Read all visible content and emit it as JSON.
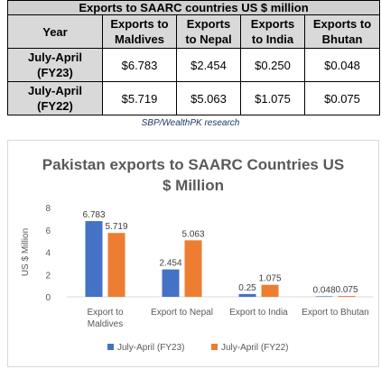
{
  "table": {
    "caption": "Exports to SAARC countries US $ million",
    "year_header": "Year",
    "columns": [
      {
        "line1": "Exports to",
        "line2": "Maldives"
      },
      {
        "line1": "Exports",
        "line2": "to Nepal"
      },
      {
        "line1": "Exports",
        "line2": "to India"
      },
      {
        "line1": "Exports to",
        "line2": "Bhutan"
      }
    ],
    "rows": [
      {
        "label_line1": "July-April",
        "label_line2": "(FY23)",
        "values": [
          "$6.783",
          "$2.454",
          "$0.250",
          "$0.048"
        ]
      },
      {
        "label_line1": "July-April",
        "label_line2": "(FY22)",
        "values": [
          "$5.719",
          "$5.063",
          "$1.075",
          "$0.075"
        ]
      }
    ]
  },
  "source_note": "SBP/WealthPK research",
  "chart_data": {
    "type": "bar",
    "title_lines": [
      "Pakistan exports to SAARC Countries US",
      "$ Million"
    ],
    "ylabel": "US $ Million",
    "xlabel": "",
    "ylim": [
      0,
      8
    ],
    "yticks": [
      0,
      2,
      4,
      6,
      8
    ],
    "grid": false,
    "legend_position": "bottom",
    "categories": [
      [
        "Export to",
        "Maldives"
      ],
      [
        "Export to Nepal"
      ],
      [
        "Export to India"
      ],
      [
        "Export to Bhutan"
      ]
    ],
    "series": [
      {
        "name": "July-April (FY23)",
        "color": "#4472c4",
        "values": [
          6.783,
          2.454,
          0.25,
          0.048
        ],
        "labels": [
          "6.783",
          "2.454",
          "0.25",
          "0.048"
        ]
      },
      {
        "name": "July-April (FY22)",
        "color": "#ed7d31",
        "values": [
          5.719,
          5.063,
          1.075,
          0.075
        ],
        "labels": [
          "5.719",
          "5.063",
          "1.075",
          "0.075"
        ]
      }
    ]
  }
}
